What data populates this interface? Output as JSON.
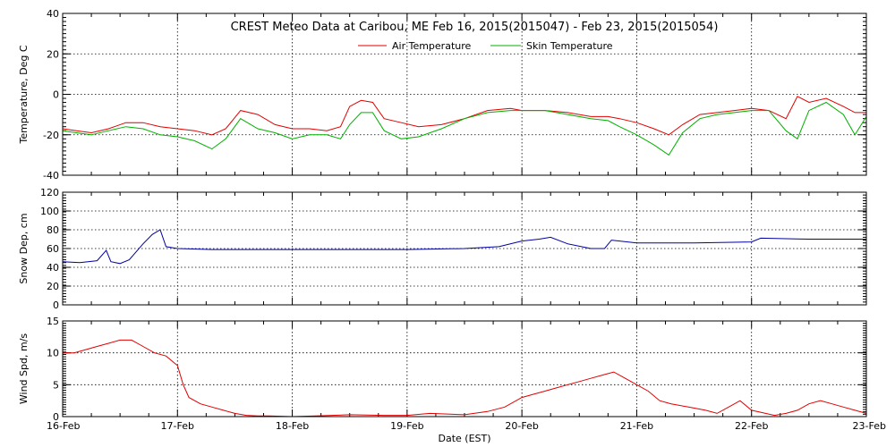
{
  "chart_data": {
    "type": "line",
    "title": "CREST Meteo Data at Caribou, ME   Feb 16, 2015(2015047) - Feb 23, 2015(2015054)",
    "xlabel": "Date (EST)",
    "x_ticks": [
      "16-Feb",
      "17-Feb",
      "18-Feb",
      "19-Feb",
      "20-Feb",
      "21-Feb",
      "22-Feb",
      "23-Feb"
    ],
    "xlim": [
      0,
      7
    ],
    "grid": true,
    "legend_position": "top-center",
    "panels": [
      {
        "id": "temperature",
        "ylabel": "Temperature, Deg C",
        "ylim": [
          -40,
          40
        ],
        "yticks": [
          -40,
          -20,
          0,
          20,
          40
        ],
        "series": [
          {
            "name": "Air Temperature",
            "color": "#e00000",
            "x": [
              0,
              0.12,
              0.25,
              0.4,
              0.55,
              0.7,
              0.85,
              1.0,
              1.15,
              1.3,
              1.42,
              1.55,
              1.7,
              1.85,
              2.0,
              2.15,
              2.3,
              2.42,
              2.5,
              2.6,
              2.7,
              2.8,
              2.95,
              3.1,
              3.3,
              3.5,
              3.7,
              3.9,
              4.0,
              4.2,
              4.4,
              4.6,
              4.75,
              4.85,
              5.0,
              5.15,
              5.28,
              5.4,
              5.55,
              5.7,
              5.85,
              6.0,
              6.15,
              6.3,
              6.4,
              6.5,
              6.65,
              6.8,
              6.9,
              7.0
            ],
            "values": [
              -17,
              -18,
              -19,
              -17,
              -14,
              -14,
              -16,
              -17,
              -18,
              -20,
              -17,
              -8,
              -10,
              -15,
              -17,
              -17,
              -18,
              -16,
              -6,
              -3,
              -4,
              -12,
              -14,
              -16,
              -15,
              -12,
              -8,
              -7,
              -8,
              -8,
              -9,
              -11,
              -11,
              -12,
              -14,
              -17,
              -20,
              -15,
              -10,
              -9,
              -8,
              -7,
              -8,
              -12,
              -1,
              -4,
              -2,
              -6,
              -9,
              -9
            ]
          },
          {
            "name": "Skin Temperature",
            "color": "#00b000",
            "x": [
              0,
              0.12,
              0.25,
              0.4,
              0.55,
              0.7,
              0.85,
              1.0,
              1.15,
              1.3,
              1.42,
              1.55,
              1.7,
              1.85,
              2.0,
              2.15,
              2.3,
              2.42,
              2.5,
              2.6,
              2.7,
              2.8,
              2.95,
              3.1,
              3.3,
              3.5,
              3.7,
              3.9,
              4.0,
              4.2,
              4.4,
              4.6,
              4.75,
              4.85,
              5.0,
              5.15,
              5.28,
              5.4,
              5.55,
              5.7,
              5.85,
              6.0,
              6.15,
              6.3,
              6.4,
              6.5,
              6.65,
              6.8,
              6.9,
              7.0
            ],
            "values": [
              -18,
              -19,
              -20,
              -18,
              -16,
              -17,
              -20,
              -21,
              -23,
              -27,
              -22,
              -12,
              -17,
              -19,
              -22,
              -20,
              -20,
              -22,
              -15,
              -9,
              -9,
              -18,
              -22,
              -21,
              -17,
              -12,
              -9,
              -8,
              -8,
              -8,
              -10,
              -12,
              -13,
              -16,
              -20,
              -25,
              -30,
              -19,
              -12,
              -10,
              -9,
              -8,
              -8,
              -18,
              -22,
              -8,
              -4,
              -10,
              -20,
              -11
            ]
          }
        ]
      },
      {
        "id": "snow",
        "ylabel": "Snow Dep, cm",
        "ylim": [
          0,
          120
        ],
        "yticks": [
          0,
          20,
          40,
          60,
          80,
          100,
          120
        ],
        "series": [
          {
            "name": "",
            "color": "#0000a0",
            "x": [
              0,
              0.15,
              0.3,
              0.38,
              0.42,
              0.5,
              0.58,
              0.7,
              0.78,
              0.85,
              0.9,
              1.0,
              1.3,
              1.6,
              2.0,
              2.5,
              3.0,
              3.5,
              3.8,
              4.0,
              4.15,
              4.25,
              4.4,
              4.6,
              4.72,
              4.78,
              5.0,
              5.5,
              6.0,
              6.08,
              6.5,
              7.0
            ],
            "values": [
              46,
              45,
              47,
              58,
              46,
              44,
              48,
              65,
              75,
              80,
              62,
              60,
              59,
              59,
              59,
              59,
              59,
              60,
              62,
              68,
              70,
              72,
              65,
              60,
              60,
              69,
              66,
              66,
              67,
              71,
              70,
              70
            ]
          }
        ]
      },
      {
        "id": "wind",
        "ylabel": "Wind Spd, m/s",
        "ylim": [
          0,
          15
        ],
        "yticks": [
          0,
          5,
          10,
          15
        ],
        "series": [
          {
            "name": "",
            "color": "#e00000",
            "x": [
              0,
              0.1,
              0.2,
              0.3,
              0.4,
              0.5,
              0.6,
              0.7,
              0.8,
              0.9,
              1.0,
              1.05,
              1.1,
              1.2,
              1.3,
              1.4,
              1.5,
              1.6,
              1.7,
              1.8,
              2.0,
              2.2,
              2.5,
              2.8,
              3.0,
              3.2,
              3.5,
              3.7,
              3.85,
              4.0,
              4.1,
              4.2,
              4.3,
              4.4,
              4.5,
              4.6,
              4.7,
              4.8,
              4.9,
              5.0,
              5.1,
              5.2,
              5.3,
              5.45,
              5.6,
              5.7,
              5.8,
              5.9,
              6.0,
              6.2,
              6.3,
              6.4,
              6.5,
              6.6,
              6.7,
              6.8,
              6.9,
              7.0
            ],
            "values": [
              10,
              10,
              10.5,
              11,
              11.5,
              12,
              12,
              11,
              10,
              9.5,
              8,
              5,
              3,
              2,
              1.5,
              1,
              0.5,
              0.2,
              0.1,
              0.1,
              0,
              0.1,
              0.3,
              0.2,
              0.2,
              0.5,
              0.3,
              0.8,
              1.5,
              3,
              3.5,
              4,
              4.5,
              5,
              5.5,
              6,
              6.5,
              7,
              6,
              5,
              4,
              2.5,
              2,
              1.5,
              1,
              0.5,
              1.5,
              2.5,
              1,
              0.2,
              0.5,
              1,
              2,
              2.5,
              2,
              1.5,
              1,
              0.5
            ]
          }
        ]
      }
    ]
  }
}
